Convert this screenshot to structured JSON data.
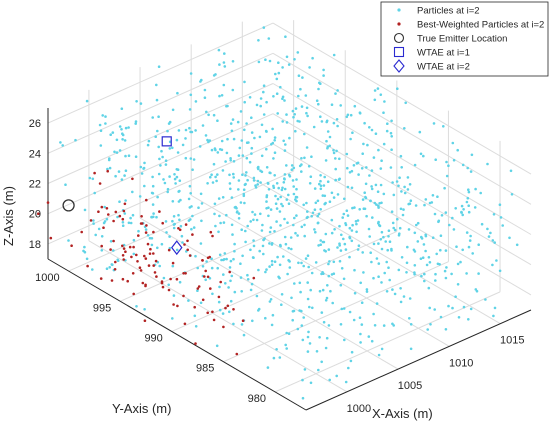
{
  "chart_data": {
    "type": "scatter",
    "projection": "3d",
    "xlabel": "X-Axis (m)",
    "ylabel": "Y-Axis (m)",
    "zlabel": "Z-Axis (m)",
    "xticks": [
      1000,
      1005,
      1010,
      1015
    ],
    "yticks": [
      980,
      985,
      990,
      995,
      1000
    ],
    "zticks": [
      18,
      20,
      22,
      24,
      26
    ],
    "xlim": [
      996,
      1018
    ],
    "ylim": [
      977,
      1002
    ],
    "zlim": [
      17,
      27
    ],
    "grid": true,
    "legend_position": "top-right",
    "series": [
      {
        "name": "Particles at i=2",
        "marker": "dot",
        "color": "#5fd3e6",
        "count": 1100,
        "x_range": [
          996,
          1018
        ],
        "y_range": [
          977,
          1002
        ],
        "z_range": [
          17,
          27
        ]
      },
      {
        "name": "Best-Weighted Particles at i=2",
        "marker": "dot",
        "color": "#b22222",
        "count": 120,
        "center": {
          "x": 998,
          "y": 994,
          "z": 20
        },
        "spread": {
          "x": 2.5,
          "y": 7,
          "z": 3
        }
      },
      {
        "name": "True Emitter Location",
        "marker": "circle",
        "color": "#333333",
        "point": {
          "x": 996.5,
          "y": 1000.5,
          "z": 21
        }
      },
      {
        "name": "WTAE at i=1",
        "marker": "square",
        "color": "#2a2ad0",
        "point": {
          "x": 1006.6,
          "y": 1001,
          "z": 22
        }
      },
      {
        "name": "WTAE at i=2",
        "marker": "diamond",
        "color": "#2a2ad0",
        "point": {
          "x": 998.5,
          "y": 992,
          "z": 21
        }
      }
    ]
  }
}
